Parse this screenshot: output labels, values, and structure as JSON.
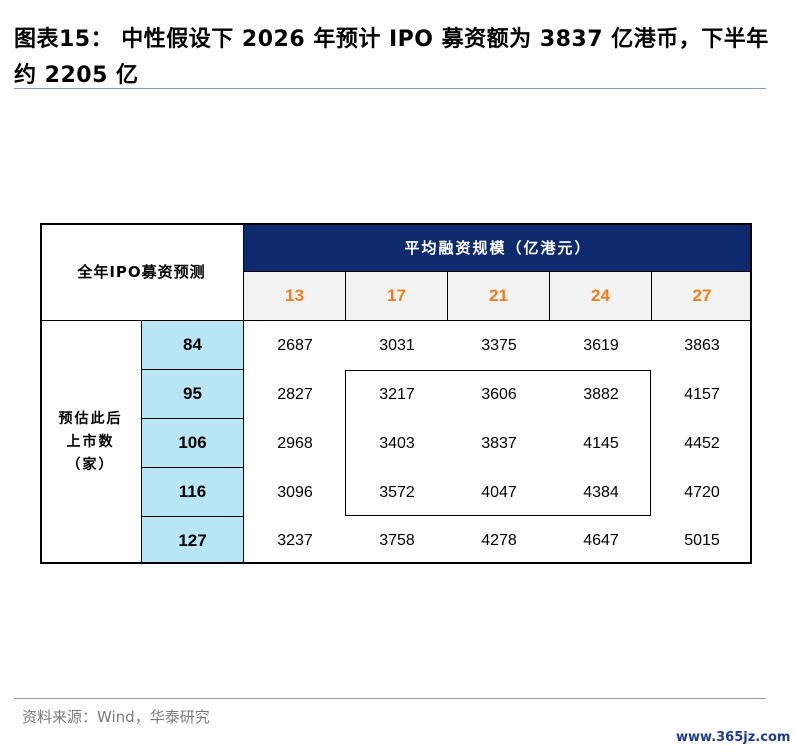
{
  "title": "图表15：  中性假设下 2026 年预计 IPO 募资额为 3837 亿港币，下半年约 2205 亿",
  "table": {
    "corner_label": "全年IPO募资预测",
    "band_label": "平均融资规模（亿港元）",
    "columns": [
      "13",
      "17",
      "21",
      "24",
      "27"
    ],
    "side_label_lines": [
      "预估此后",
      "上市数",
      "（家）"
    ],
    "rows": [
      {
        "label": "84",
        "values": [
          "2687",
          "3031",
          "3375",
          "3619",
          "3863"
        ]
      },
      {
        "label": "95",
        "values": [
          "2827",
          "3217",
          "3606",
          "3882",
          "4157"
        ]
      },
      {
        "label": "106",
        "values": [
          "2968",
          "3403",
          "3837",
          "4145",
          "4452"
        ]
      },
      {
        "label": "116",
        "values": [
          "3096",
          "3572",
          "4047",
          "4384",
          "4720"
        ]
      },
      {
        "label": "127",
        "values": [
          "3237",
          "3758",
          "4278",
          "4647",
          "5015"
        ]
      }
    ]
  },
  "source": "资料来源：Wind，华泰研究",
  "watermark": "www.365jz.com",
  "colors": {
    "header_band": "#0d2a6e",
    "column_header_text": "#f07e1f",
    "row_header_fill": "#b9e6f5"
  }
}
